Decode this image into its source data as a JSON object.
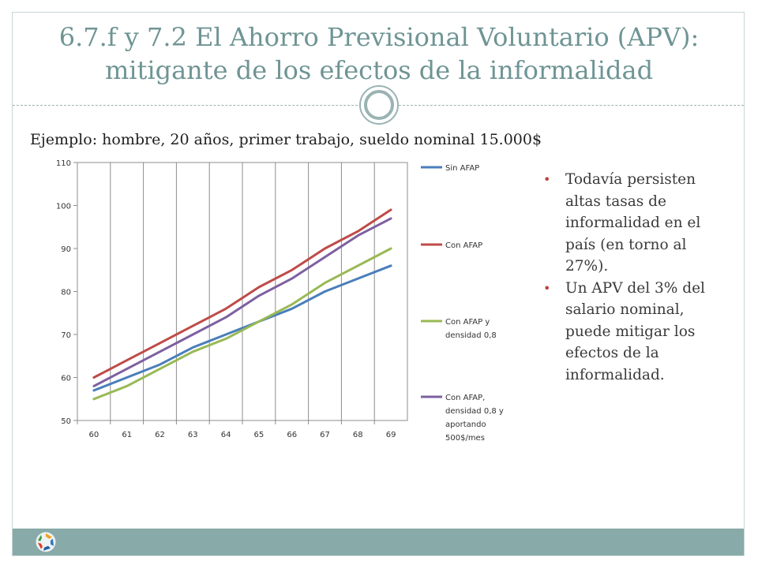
{
  "slide": {
    "title_line1": "6.7.f y 7.2 El Ahorro Previsional Voluntario (APV):",
    "title_line2": "mitigante de los efectos de la informalidad",
    "subtitle": "Ejemplo: hombre, 20 años, primer trabajo, sueldo nominal 15.000$",
    "bullets": [
      "Todavía persisten altas tasas de informalidad en el país (en torno al 27%).",
      "Un APV del 3% del salario nominal, puede mitigar los efectos de la informalidad."
    ],
    "accent_color": "#6f9494",
    "bullet_color": "#b8453f",
    "footer_color": "#88aaa8",
    "footer_icon": "recycle-logo-icon"
  },
  "chart_data": {
    "type": "line",
    "x": [
      60,
      61,
      62,
      63,
      64,
      65,
      66,
      67,
      68,
      69
    ],
    "title": "",
    "xlabel": "",
    "ylabel": "",
    "ylim": [
      50,
      110
    ],
    "yticks": [
      50,
      60,
      70,
      80,
      90,
      100,
      110
    ],
    "grid": "vertical",
    "legend_position": "right",
    "series": [
      {
        "name": "Sin AFAP",
        "legend_lines": [
          "Sin AFAP"
        ],
        "color": "#4a7ebb",
        "values": [
          57,
          60,
          63,
          67,
          70,
          73,
          76,
          80,
          83,
          86
        ]
      },
      {
        "name": "Con AFAP",
        "legend_lines": [
          "Con AFAP"
        ],
        "color": "#be4b48",
        "values": [
          60,
          64,
          68,
          72,
          76,
          81,
          85,
          90,
          94,
          99
        ]
      },
      {
        "name": "Con AFAP y densidad 0,8",
        "legend_lines": [
          "Con AFAP y",
          "densidad 0,8"
        ],
        "color": "#98b954",
        "values": [
          55,
          58,
          62,
          66,
          69,
          73,
          77,
          82,
          86,
          90
        ]
      },
      {
        "name": "Con AFAP, densidad 0,8 y aportando 500$/mes",
        "legend_lines": [
          "Con AFAP,",
          "densidad 0,8 y",
          "aportando",
          "500$/mes"
        ],
        "color": "#7d60a0",
        "values": [
          58,
          62,
          66,
          70,
          74,
          79,
          83,
          88,
          93,
          97
        ]
      }
    ]
  }
}
